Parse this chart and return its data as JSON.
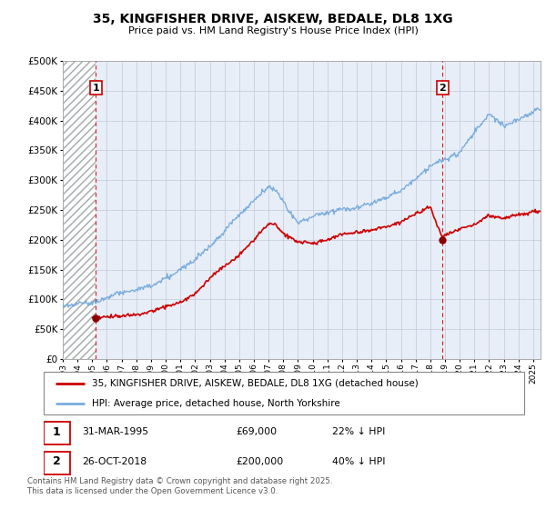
{
  "title": "35, KINGFISHER DRIVE, AISKEW, BEDALE, DL8 1XG",
  "subtitle": "Price paid vs. HM Land Registry's House Price Index (HPI)",
  "legend_line1": "35, KINGFISHER DRIVE, AISKEW, BEDALE, DL8 1XG (detached house)",
  "legend_line2": "HPI: Average price, detached house, North Yorkshire",
  "footnote": "Contains HM Land Registry data © Crown copyright and database right 2025.\nThis data is licensed under the Open Government Licence v3.0.",
  "purchase1_date": "31-MAR-1995",
  "purchase1_price": 69000,
  "purchase1_label": "22% ↓ HPI",
  "purchase1_year": 1995.25,
  "purchase2_date": "26-OCT-2018",
  "purchase2_price": 200000,
  "purchase2_label": "40% ↓ HPI",
  "purchase2_year": 2018.83,
  "ylim": [
    0,
    500000
  ],
  "xlim_start": 1993,
  "xlim_end": 2025.5,
  "hatch_end": 1995.25,
  "price_color": "#cc0000",
  "hpi_color": "#7aadde",
  "vline_color": "#dd0000",
  "background_color": "#e8eef8",
  "grid_color": "#c0c8d8",
  "marker_color": "#880000"
}
